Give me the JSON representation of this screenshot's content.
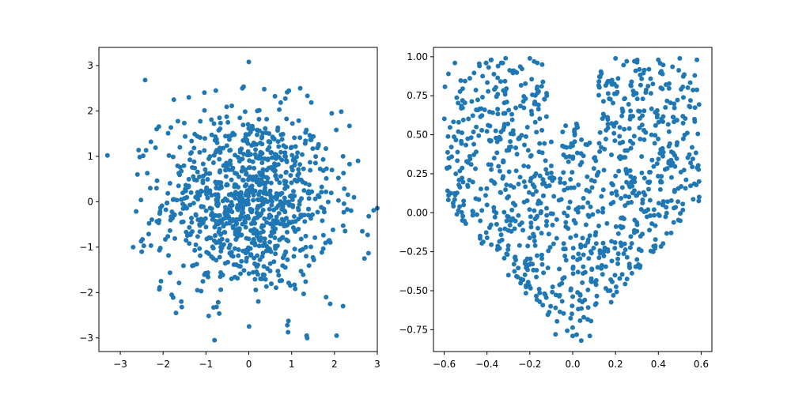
{
  "chart_data": [
    {
      "type": "scatter",
      "title": "",
      "xlabel": "",
      "ylabel": "",
      "xlim": [
        -3.5,
        3.0
      ],
      "ylim": [
        -3.3,
        3.4
      ],
      "xticks": [
        -3,
        -2,
        -1,
        0,
        1,
        2,
        3
      ],
      "xtick_labels": [
        "−3",
        "−2",
        "−1",
        "0",
        "1",
        "2",
        "3"
      ],
      "yticks": [
        -3,
        -2,
        -1,
        0,
        1,
        2,
        3
      ],
      "ytick_labels": [
        "−3",
        "−2",
        "−1",
        "0",
        "1",
        "2",
        "3"
      ],
      "grid": false,
      "point_color": "#1f77b4",
      "distribution": "bivariate standard normal, 1000 points",
      "point_count": 1000,
      "points": [
        [
          -3.3,
          1.02
        ],
        [
          -2.42,
          2.68
        ],
        [
          -2.7,
          -1.0
        ],
        [
          -2.5,
          -1.1
        ],
        [
          -2.6,
          0.6
        ],
        [
          -2.3,
          0.3
        ],
        [
          -2.05,
          -1.75
        ],
        [
          -1.8,
          -2.05
        ],
        [
          -1.7,
          -2.45
        ],
        [
          -1.75,
          2.25
        ],
        [
          -1.4,
          2.3
        ],
        [
          -0.8,
          -3.05
        ],
        [
          0.0,
          3.08
        ],
        [
          -0.77,
          2.45
        ],
        [
          -0.15,
          2.5
        ],
        [
          0.36,
          2.48
        ],
        [
          1.2,
          2.5
        ],
        [
          0.9,
          -2.72
        ],
        [
          1.35,
          -2.95
        ],
        [
          2.05,
          -2.95
        ],
        [
          2.2,
          -2.3
        ],
        [
          1.9,
          -2.25
        ],
        [
          2.35,
          1.67
        ],
        [
          2.2,
          1.0
        ],
        [
          2.55,
          0.9
        ],
        [
          2.8,
          -0.32
        ],
        [
          2.7,
          -1.25
        ],
        [
          2.65,
          -0.65
        ],
        [
          -2.15,
          1.6
        ],
        [
          -1.2,
          -1.95
        ]
      ]
    },
    {
      "type": "scatter",
      "title": "",
      "xlabel": "",
      "ylabel": "",
      "xlim": [
        -0.65,
        0.65
      ],
      "ylim": [
        -0.89,
        1.06
      ],
      "xticks": [
        -0.6,
        -0.4,
        -0.2,
        0.0,
        0.2,
        0.4,
        0.6
      ],
      "xtick_labels": [
        "−0.6",
        "−0.4",
        "−0.2",
        "0.0",
        "0.2",
        "0.4",
        "0.6"
      ],
      "yticks": [
        -0.75,
        -0.5,
        -0.25,
        0.0,
        0.25,
        0.5,
        0.75,
        1.0
      ],
      "ytick_labels": [
        "−0.75",
        "−0.50",
        "−0.25",
        "0.00",
        "0.25",
        "0.50",
        "0.75",
        "1.00"
      ],
      "grid": false,
      "point_color": "#1f77b4",
      "distribution": "heart-shaped uniform region, 1000 points",
      "point_count": 1000,
      "points": [
        [
          -0.58,
          0.89
        ],
        [
          -0.55,
          0.96
        ],
        [
          -0.38,
          0.98
        ],
        [
          -0.2,
          0.99
        ],
        [
          -0.18,
          0.97
        ],
        [
          0.0,
          0.43
        ],
        [
          0.2,
          0.99
        ],
        [
          0.4,
          0.98
        ],
        [
          0.5,
          0.99
        ],
        [
          0.58,
          0.98
        ],
        [
          0.57,
          0.88
        ],
        [
          0.55,
          0.72
        ],
        [
          0.0,
          -0.79
        ],
        [
          0.04,
          -0.82
        ],
        [
          0.08,
          -0.79
        ],
        [
          -0.08,
          -0.78
        ],
        [
          -0.3,
          -0.4
        ],
        [
          0.3,
          -0.3
        ],
        [
          -0.4,
          0.05
        ],
        [
          0.38,
          0.02
        ],
        [
          -0.45,
          0.55
        ],
        [
          0.45,
          0.52
        ],
        [
          -0.1,
          0.3
        ],
        [
          0.12,
          0.26
        ]
      ]
    }
  ]
}
